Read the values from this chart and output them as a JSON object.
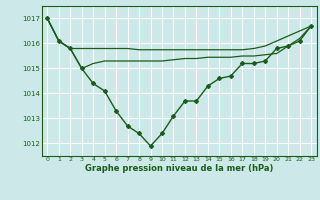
{
  "xlabel": "Graphe pression niveau de la mer (hPa)",
  "x_ticks": [
    0,
    1,
    2,
    3,
    4,
    5,
    6,
    7,
    8,
    9,
    10,
    11,
    12,
    13,
    14,
    15,
    16,
    17,
    18,
    19,
    20,
    21,
    22,
    23
  ],
  "ylim": [
    1011.5,
    1017.5
  ],
  "yticks": [
    1012,
    1013,
    1014,
    1015,
    1016,
    1017
  ],
  "bg_color": "#cce8e8",
  "line_color": "#1a5c1a",
  "grid_color": "#ffffff",
  "series_main": [
    1017.0,
    1016.1,
    1015.8,
    1015.0,
    1014.4,
    1014.1,
    1013.3,
    1012.7,
    1012.4,
    1011.9,
    1012.4,
    1013.1,
    1013.7,
    1013.7,
    1014.3,
    1014.6,
    1014.7,
    1015.2,
    1015.2,
    1015.3,
    1015.8,
    1015.9,
    1016.1,
    1016.7
  ],
  "series_high": [
    1017.0,
    1016.1,
    1015.8,
    1015.8,
    1015.8,
    1015.8,
    1015.8,
    1015.8,
    1015.75,
    1015.75,
    1015.75,
    1015.75,
    1015.75,
    1015.75,
    1015.75,
    1015.75,
    1015.75,
    1015.75,
    1015.8,
    1015.9,
    1016.1,
    1016.3,
    1016.5,
    1016.7
  ],
  "series_low": [
    1017.0,
    1016.1,
    1015.8,
    1015.0,
    1015.2,
    1015.3,
    1015.3,
    1015.3,
    1015.3,
    1015.3,
    1015.3,
    1015.35,
    1015.4,
    1015.4,
    1015.45,
    1015.45,
    1015.45,
    1015.5,
    1015.5,
    1015.55,
    1015.6,
    1015.9,
    1016.2,
    1016.7
  ]
}
